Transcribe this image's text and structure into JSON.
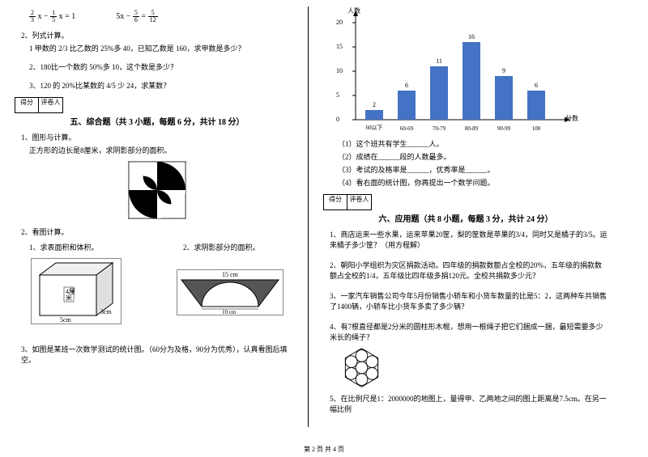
{
  "leftCol": {
    "eq1_a": "2",
    "eq1_b": "3",
    "eq1_c": "1",
    "eq1_d": "5",
    "eq1_rest": "x = 1",
    "eq2_a": "5",
    "eq2_b": "6",
    "eq2_c": "5",
    "eq2_d": "12",
    "eq2_pre": "5x − ",
    "item2": "2、列式计算。",
    "q2_1": "1 甲数的 2/3 比乙数的 25%多 40，已知乙数是 160，求甲数是多少？",
    "q2_2": "2、180比一个数的 50%多 10，这个数是多少？",
    "q2_3": "3、120 的 20%比某数的 4/5 少 24，求某数？",
    "scoreLabel1": "得分",
    "scoreLabel2": "评卷人",
    "section5": "五、综合题（共 3 小题，每题 6 分，共计 18 分）",
    "s5_1": "1、图形与计算。",
    "s5_1sub": "正方形的边长是8厘米，求阴影部分的面积。",
    "s5_2": "2、看图计算。",
    "s5_2a": "1、求表面积和体积。",
    "s5_2b": "2、求阴影部分的面积。",
    "cuboid_h": "4厘米",
    "cuboid_w": "5cm",
    "cuboid_d": "3cm",
    "arch_top": "15 cm",
    "arch_bottom": "10 cm",
    "s5_3": "3、如图是某班一次数学测试的统计图。（60分为及格，90分为优秀），认真看图后填空。"
  },
  "rightCol": {
    "chart": {
      "ytitle": "人数",
      "xtitle": "分数",
      "categories": [
        "60以下",
        "60-69",
        "70-79",
        "80-89",
        "90-99",
        "100"
      ],
      "values": [
        2,
        6,
        11,
        16,
        9,
        6
      ],
      "ymax": 20,
      "ytick": 5,
      "bar_color": "#4472c4"
    },
    "cq1": "（1）这个班共有学生______人。",
    "cq2": "（2）成绩在______段的人数最多。",
    "cq3": "（3）考试的及格率是______，优秀率是______。",
    "cq4": "（4）看右面的统计图，你再提出一个数学问题。",
    "scoreLabel1": "得分",
    "scoreLabel2": "评卷人",
    "section6": "六、应用题（共 8 小题，每题 3 分，共计 24 分）",
    "s6_1": "1、商店运来一些水果，运来苹果20筐，梨的筐数是苹果的3/4，同时又是橘子的3/5。运来橘子多少筐？（用方程解）",
    "s6_2": "2、朝阳小学组织为灾区捐款活动。四年级的捐款数额占全校的20%，五年级的捐款数额占全校的1/4，五年级比四年级多捐120元。全校共捐款多少元？",
    "s6_3": "3、一家汽车销售公司今年5月份销售小轿车和小货车数量的比是5：2，这两种车共销售了1400辆，小轿车比小货车多卖了多少辆？",
    "s6_4": "4、有7根直径都是2分米的圆柱形木棍，想用一根绳子把它们捆成一捆，最短需要多少米长的绳子？",
    "s6_5": "5、在比例尺是1：2000000的地图上，量得甲、乙两地之间的图上距离是7.5cm。在另一幅比例"
  },
  "footer": "第 2 页 共 4 页"
}
